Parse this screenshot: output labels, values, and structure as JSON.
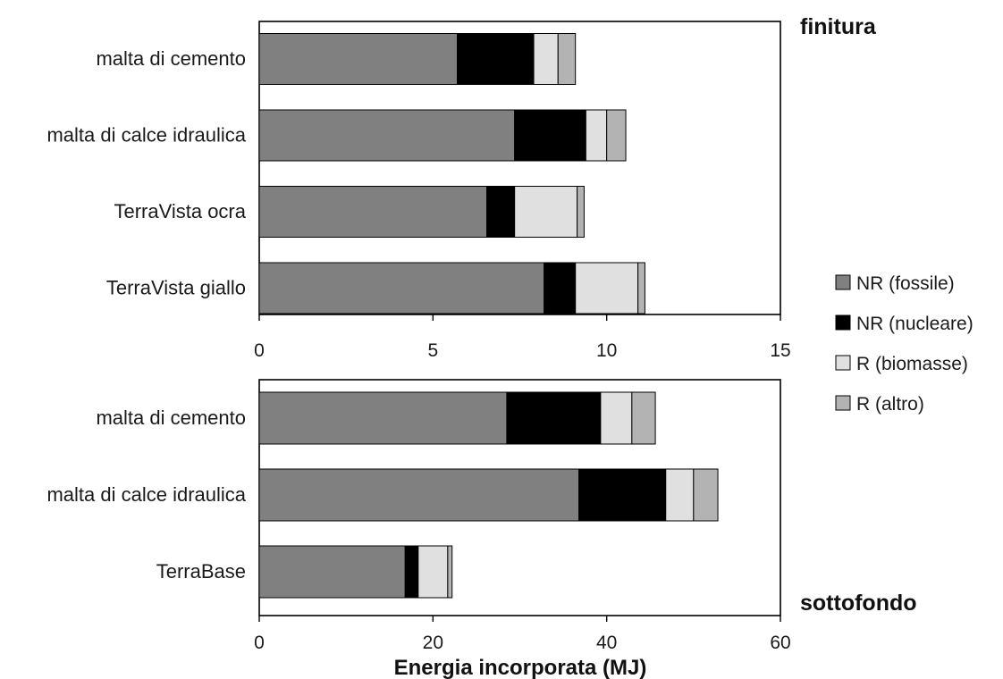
{
  "chart_data": {
    "type": "bar",
    "orientation": "horizontal",
    "stacked": true,
    "xlabel": "Energia incorporata (MJ)",
    "legend": {
      "placement": "right",
      "entries": [
        {
          "name": "NR (fossile)",
          "color": "#808080"
        },
        {
          "name": "NR (nucleare)",
          "color": "#000000"
        },
        {
          "name": "R (biomasse)",
          "color": "#e0e0e0"
        },
        {
          "name": "R (altro)",
          "color": "#b3b3b3"
        }
      ]
    },
    "panels": [
      {
        "title": "finitura",
        "xlim": [
          0,
          15
        ],
        "xticks": [
          "0",
          "5",
          "10",
          "15"
        ],
        "categories": [
          "malta di cemento",
          "malta di calce idraulica",
          "TerraVista ocra",
          "TerraVista giallo"
        ],
        "series": [
          {
            "name": "NR (fossile)",
            "values": [
              5.7,
              7.35,
              6.55,
              8.2
            ]
          },
          {
            "name": "NR (nucleare)",
            "values": [
              2.2,
              2.05,
              0.8,
              0.9
            ]
          },
          {
            "name": "R (biomasse)",
            "values": [
              0.7,
              0.6,
              1.8,
              1.8
            ]
          },
          {
            "name": "R (altro)",
            "values": [
              0.5,
              0.55,
              0.2,
              0.2
            ]
          }
        ]
      },
      {
        "title": "sottofondo",
        "xlim": [
          0,
          60
        ],
        "xticks": [
          "0",
          "20",
          "40",
          "60"
        ],
        "categories": [
          "malta di cemento",
          "malta di calce idraulica",
          "TerraBase"
        ],
        "series": [
          {
            "name": "NR (fossile)",
            "values": [
              28.5,
              36.8,
              16.8
            ]
          },
          {
            "name": "NR (nucleare)",
            "values": [
              10.8,
              10.0,
              1.5
            ]
          },
          {
            "name": "R (biomasse)",
            "values": [
              3.6,
              3.2,
              3.4
            ]
          },
          {
            "name": "R (altro)",
            "values": [
              2.7,
              2.8,
              0.5
            ]
          }
        ]
      }
    ]
  }
}
